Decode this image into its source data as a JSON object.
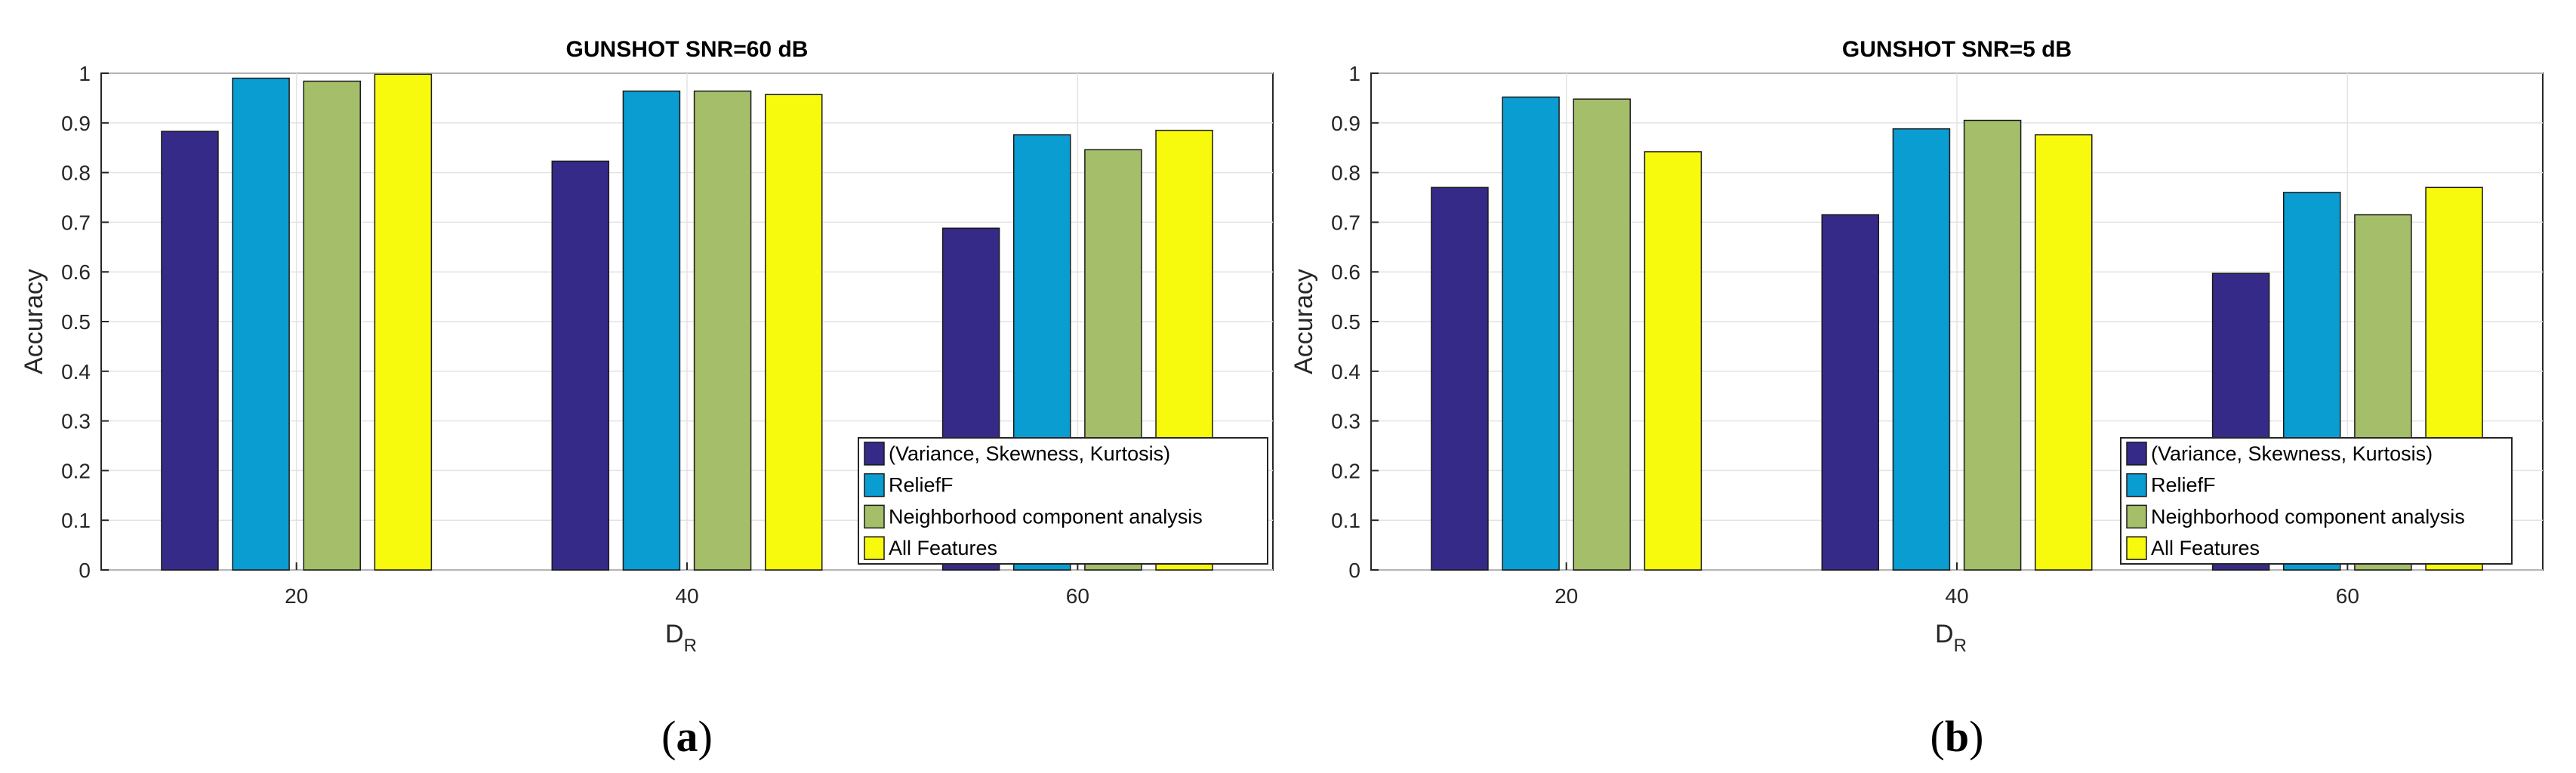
{
  "chart_data": [
    {
      "type": "bar",
      "title": "GUNSHOT SNR=60 dB",
      "xlabel": "D",
      "xlabel_sub": "R",
      "ylabel": "Accuracy",
      "ylim": [
        0,
        1
      ],
      "yticks": [
        "0",
        "0.1",
        "0.2",
        "0.3",
        "0.4",
        "0.5",
        "0.6",
        "0.7",
        "0.8",
        "0.9",
        "1"
      ],
      "grid": true,
      "legend_position": "bottom-right",
      "categories": [
        "20",
        "40",
        "60"
      ],
      "series": [
        {
          "name": "(Variance, Skewness, Kurtosis)",
          "color": "#352a87",
          "values": [
            0.883,
            0.823,
            0.688
          ]
        },
        {
          "name": "ReliefF",
          "color": "#0a9dd1",
          "values": [
            0.99,
            0.964,
            0.876
          ]
        },
        {
          "name": "Neighborhood component analysis",
          "color": "#a4be6a",
          "values": [
            0.984,
            0.964,
            0.846
          ]
        },
        {
          "name": "All Features",
          "color": "#f8fa0d",
          "values": [
            0.998,
            0.957,
            0.885
          ]
        }
      ],
      "caption_label": "a"
    },
    {
      "type": "bar",
      "title": "GUNSHOT SNR=5 dB",
      "xlabel": "D",
      "xlabel_sub": "R",
      "ylabel": "Accuracy",
      "ylim": [
        0,
        1
      ],
      "yticks": [
        "0",
        "0.1",
        "0.2",
        "0.3",
        "0.4",
        "0.5",
        "0.6",
        "0.7",
        "0.8",
        "0.9",
        "1"
      ],
      "grid": true,
      "legend_position": "bottom-right",
      "categories": [
        "20",
        "40",
        "60"
      ],
      "series": [
        {
          "name": "(Variance, Skewness, Kurtosis)",
          "color": "#352a87",
          "values": [
            0.77,
            0.715,
            0.597
          ]
        },
        {
          "name": "ReliefF",
          "color": "#0a9dd1",
          "values": [
            0.952,
            0.888,
            0.76
          ]
        },
        {
          "name": "Neighborhood component analysis",
          "color": "#a4be6a",
          "values": [
            0.948,
            0.905,
            0.715
          ]
        },
        {
          "name": "All Features",
          "color": "#f8fa0d",
          "values": [
            0.842,
            0.876,
            0.77
          ]
        }
      ],
      "caption_label": "b"
    }
  ]
}
